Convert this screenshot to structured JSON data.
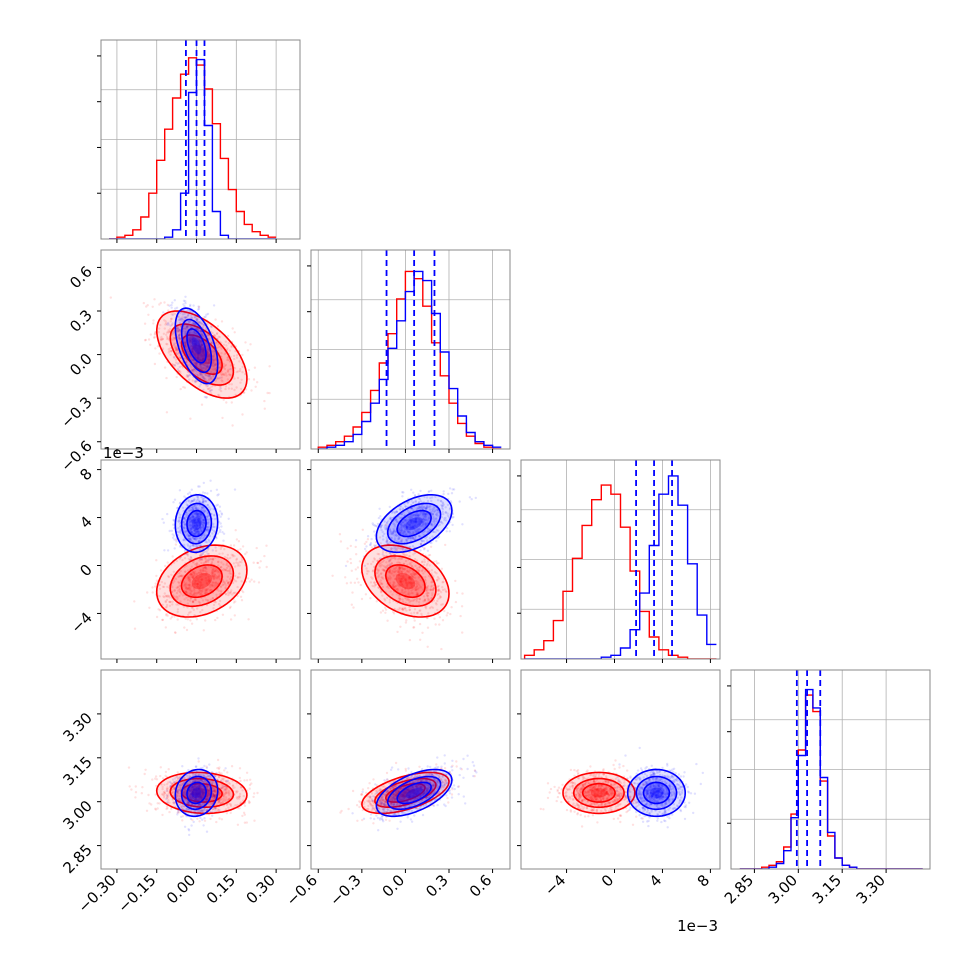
{
  "colors": {
    "series_a": "#0000ff",
    "series_b": "#ff0000",
    "grid": "#b0b0b0",
    "frame": "#888888"
  },
  "chart_data": {
    "type": "corner",
    "parameters": 4,
    "ranges": [
      [
        -0.36,
        0.39
      ],
      [
        -0.65,
        0.72
      ],
      [
        -0.0078,
        0.0088
      ],
      [
        2.77,
        3.45
      ]
    ],
    "ticks": [
      {
        "values": [
          -0.3,
          -0.15,
          0.0,
          0.15,
          0.3
        ],
        "labels": [
          "−0.30",
          "−0.15",
          "0.00",
          "0.15",
          "0.30"
        ]
      },
      {
        "values": [
          -0.6,
          -0.3,
          0.0,
          0.3,
          0.6
        ],
        "labels": [
          "−0.6",
          "−0.3",
          "0.0",
          "0.3",
          "0.6"
        ]
      },
      {
        "values": [
          -0.004,
          0.0,
          0.004,
          0.008
        ],
        "labels": [
          "−4",
          "0",
          "4",
          "8"
        ],
        "offset_label": "1e−3"
      },
      {
        "values": [
          2.85,
          3.0,
          3.15,
          3.3
        ],
        "labels": [
          "2.85",
          "3.00",
          "3.15",
          "3.30"
        ]
      }
    ],
    "series": [
      {
        "color": "blue",
        "mean": [
          0.0,
          0.06,
          0.0035,
          3.03
        ],
        "std": [
          0.04,
          0.13,
          0.0012,
          0.04
        ],
        "corr": {
          "0-1": -0.5,
          "0-2": 0.05,
          "0-3": 0.1,
          "1-2": 0.45,
          "1-3": 0.55,
          "2-3": 0.0
        },
        "quantiles": [
          [
            -0.04,
            0.0,
            0.03
          ],
          [
            -0.13,
            0.06,
            0.2
          ],
          [
            0.0018,
            0.0033,
            0.0048
          ],
          [
            2.995,
            3.03,
            3.075
          ]
        ]
      },
      {
        "color": "red",
        "mean": [
          0.02,
          0.0,
          -0.0013,
          3.03
        ],
        "std": [
          0.085,
          0.15,
          0.0015,
          0.035
        ],
        "corr": {
          "0-1": -0.55,
          "0-2": 0.3,
          "0-3": -0.1,
          "1-2": -0.35,
          "1-3": 0.55,
          "2-3": 0.0
        }
      }
    ],
    "histograms": [
      {
        "bins": [
          -0.33,
          -0.3,
          -0.27,
          -0.24,
          -0.21,
          -0.18,
          -0.15,
          -0.12,
          -0.09,
          -0.06,
          -0.03,
          0.0,
          0.03,
          0.06,
          0.09,
          0.12,
          0.15,
          0.18,
          0.21,
          0.24,
          0.27,
          0.3,
          0.33
        ],
        "blue": [
          0,
          0,
          0,
          0,
          0,
          0,
          0,
          0.01,
          0.05,
          0.25,
          0.8,
          0.98,
          0.62,
          0.15,
          0.02,
          0,
          0,
          0,
          0,
          0,
          0
        ],
        "red": [
          0,
          0.01,
          0.02,
          0.05,
          0.12,
          0.25,
          0.43,
          0.6,
          0.77,
          0.9,
          0.99,
          0.95,
          0.82,
          0.63,
          0.44,
          0.27,
          0.15,
          0.08,
          0.04,
          0.02,
          0.01
        ]
      },
      {
        "bins": [
          -0.6,
          -0.54,
          -0.48,
          -0.42,
          -0.36,
          -0.3,
          -0.24,
          -0.18,
          -0.12,
          -0.06,
          0.0,
          0.06,
          0.12,
          0.18,
          0.24,
          0.3,
          0.36,
          0.42,
          0.48,
          0.54,
          0.6,
          0.66
        ],
        "blue": [
          0,
          0.01,
          0.02,
          0.04,
          0.08,
          0.15,
          0.25,
          0.38,
          0.55,
          0.7,
          0.86,
          0.97,
          0.92,
          0.74,
          0.53,
          0.33,
          0.18,
          0.09,
          0.04,
          0.02,
          0.01
        ],
        "red": [
          0.01,
          0.02,
          0.04,
          0.07,
          0.12,
          0.2,
          0.32,
          0.47,
          0.63,
          0.82,
          0.97,
          0.93,
          0.78,
          0.58,
          0.4,
          0.25,
          0.14,
          0.07,
          0.03,
          0.01,
          0.0
        ]
      },
      {
        "bins": [
          -0.0075,
          -0.0067,
          -0.0059,
          -0.0051,
          -0.0043,
          -0.0035,
          -0.0027,
          -0.0019,
          -0.0011,
          -0.0003,
          0.0005,
          0.0013,
          0.0021,
          0.0029,
          0.0037,
          0.0045,
          0.0053,
          0.0061,
          0.0069,
          0.0077,
          0.0085
        ],
        "blue": [
          0,
          0,
          0,
          0,
          0,
          0,
          0,
          0,
          0.01,
          0.02,
          0.06,
          0.16,
          0.36,
          0.62,
          0.9,
          1.0,
          0.84,
          0.52,
          0.24,
          0.08
        ],
        "red": [
          0.02,
          0.05,
          0.1,
          0.21,
          0.37,
          0.55,
          0.73,
          0.87,
          0.95,
          0.9,
          0.72,
          0.48,
          0.26,
          0.12,
          0.05,
          0.02,
          0.01,
          0,
          0,
          0
        ]
      },
      {
        "bins": [
          2.8,
          2.825,
          2.85,
          2.875,
          2.9,
          2.925,
          2.95,
          2.975,
          3.0,
          3.025,
          3.05,
          3.075,
          3.1,
          3.125,
          3.15,
          3.175,
          3.2,
          3.225,
          3.25,
          3.275,
          3.3,
          3.325,
          3.35,
          3.375,
          3.4,
          3.425
        ],
        "blue": [
          0,
          0,
          0,
          0,
          0.01,
          0.03,
          0.1,
          0.28,
          0.62,
          0.98,
          0.88,
          0.5,
          0.2,
          0.06,
          0.02,
          0.01,
          0,
          0,
          0,
          0,
          0,
          0,
          0,
          0,
          0
        ],
        "red": [
          0,
          0,
          0,
          0.01,
          0.02,
          0.04,
          0.12,
          0.3,
          0.65,
          0.95,
          0.86,
          0.48,
          0.18,
          0.06,
          0.02,
          0.01,
          0,
          0,
          0,
          0,
          0,
          0,
          0,
          0,
          0
        ]
      }
    ]
  }
}
